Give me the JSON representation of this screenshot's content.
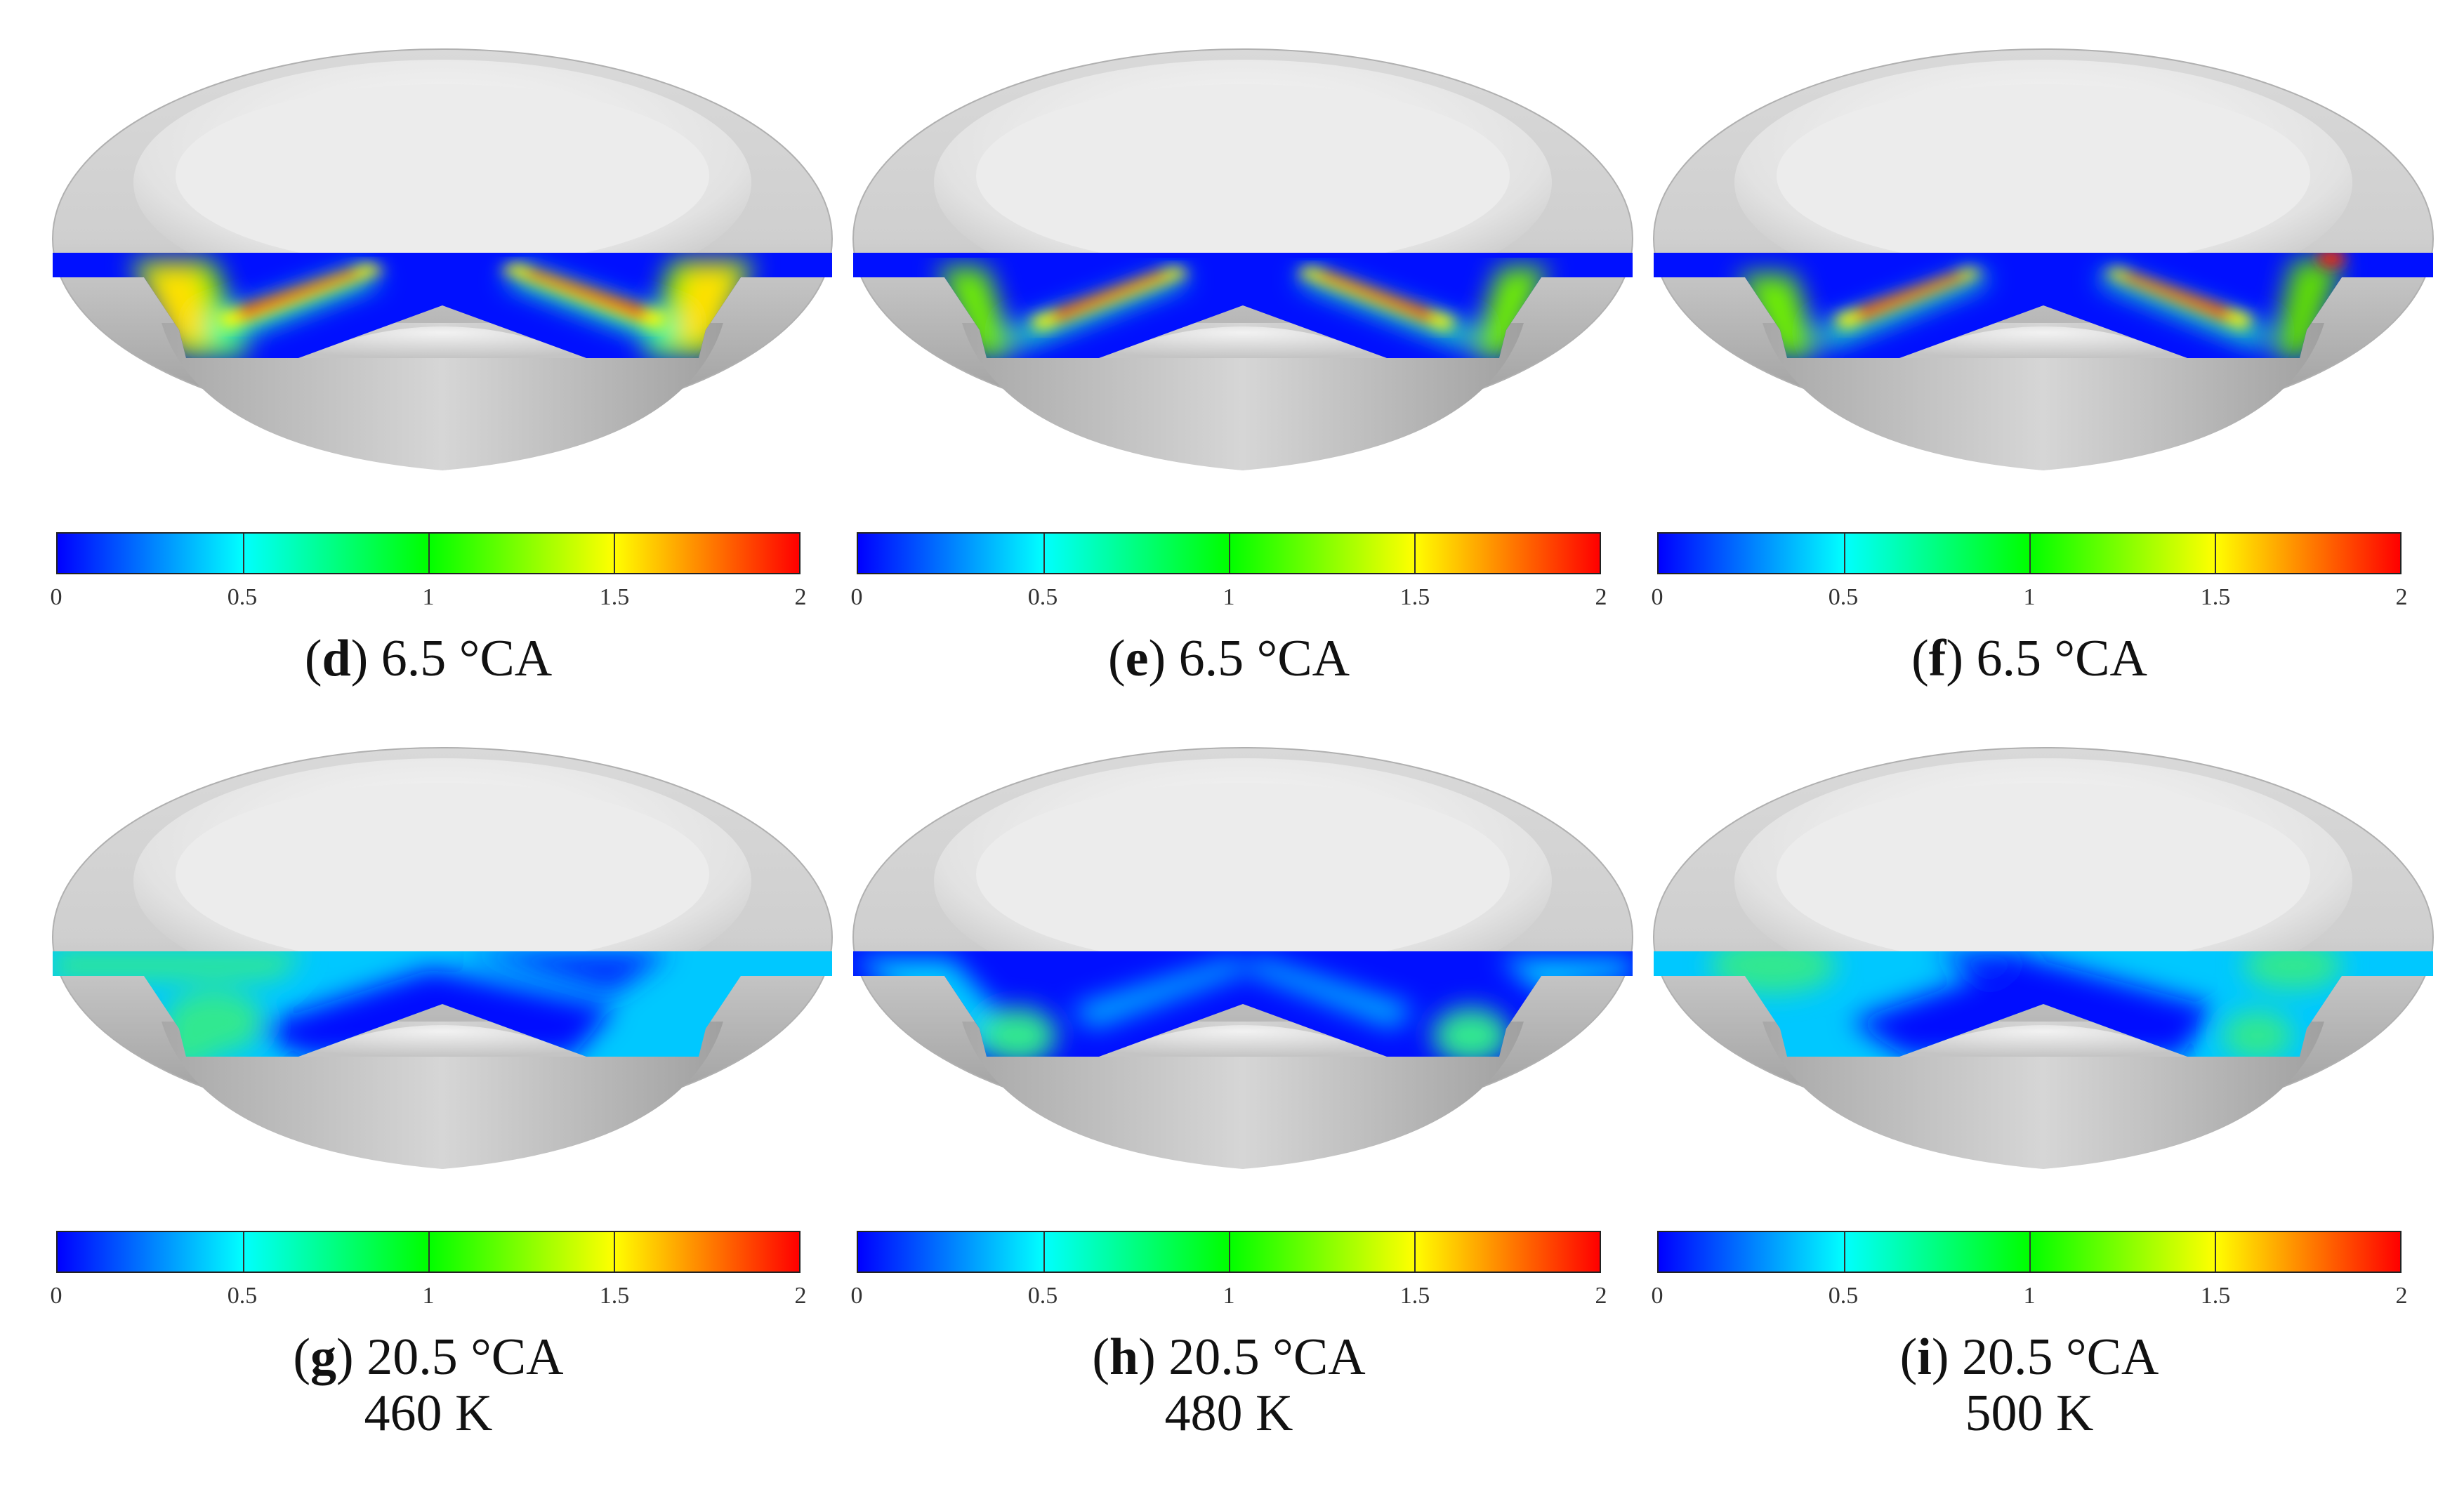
{
  "colorbar": {
    "ticks": [
      "0",
      "0.5",
      "1",
      "1.5",
      "2"
    ],
    "colors": [
      "#0000ff",
      "#00ffff",
      "#00ff00",
      "#ffff00",
      "#ff0000"
    ]
  },
  "panels": [
    {
      "letter": "d",
      "angle": "6.5 °CA",
      "temp": ""
    },
    {
      "letter": "e",
      "angle": "6.5 °CA",
      "temp": ""
    },
    {
      "letter": "f",
      "angle": "6.5 °CA",
      "temp": ""
    },
    {
      "letter": "g",
      "angle": "20.5 °CA",
      "temp": "460 K"
    },
    {
      "letter": "h",
      "angle": "20.5 °CA",
      "temp": "480 K"
    },
    {
      "letter": "i",
      "angle": "20.5 °CA",
      "temp": "500 K"
    }
  ]
}
